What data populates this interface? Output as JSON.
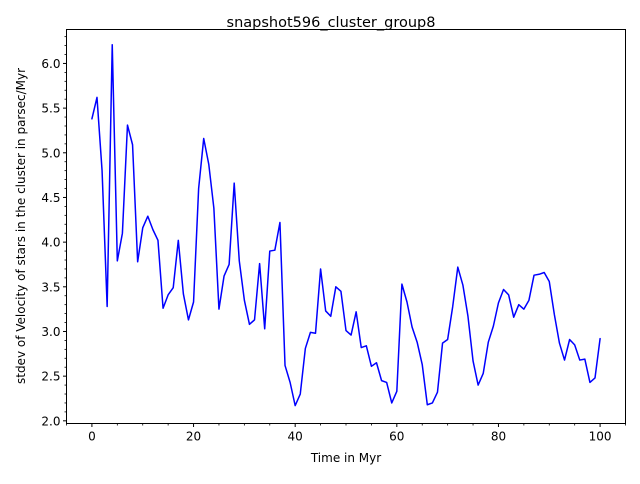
{
  "chart_data": {
    "type": "line",
    "title": "snapshot596_cluster_group8",
    "xlabel": "Time in Myr",
    "ylabel": "stdev of Velocity of stars in the cluster in parsec/Myr",
    "xlim": [
      -5,
      105
    ],
    "ylim": [
      1.97,
      6.38
    ],
    "xticks": [
      0,
      20,
      40,
      60,
      80,
      100
    ],
    "xtick_labels": [
      "0",
      "20",
      "40",
      "60",
      "80",
      "100"
    ],
    "yticks": [
      2.0,
      2.5,
      3.0,
      3.5,
      4.0,
      4.5,
      5.0,
      5.5,
      6.0
    ],
    "ytick_labels": [
      "2.0",
      "2.5",
      "3.0",
      "3.5",
      "4.0",
      "4.5",
      "5.0",
      "5.5",
      "6.0"
    ],
    "grid": false,
    "series": [
      {
        "color": "#0000ff",
        "x": [
          0,
          1,
          2,
          3,
          4,
          5,
          6,
          7,
          8,
          9,
          10,
          11,
          12,
          13,
          14,
          15,
          16,
          17,
          18,
          19,
          20,
          21,
          22,
          23,
          24,
          25,
          26,
          27,
          28,
          29,
          30,
          31,
          32,
          33,
          34,
          35,
          36,
          37,
          38,
          39,
          40,
          41,
          42,
          43,
          44,
          45,
          46,
          47,
          48,
          49,
          50,
          51,
          52,
          53,
          54,
          55,
          56,
          57,
          58,
          59,
          60,
          61,
          62,
          63,
          64,
          65,
          66,
          67,
          68,
          69,
          70,
          71,
          72,
          73,
          74,
          75,
          76,
          77,
          78,
          79,
          80,
          81,
          82,
          83,
          84,
          85,
          86,
          87,
          88,
          89,
          90,
          91,
          92,
          93,
          94,
          95,
          96,
          97,
          98,
          99,
          100
        ],
        "y": [
          5.38,
          5.62,
          4.8,
          3.28,
          6.21,
          3.79,
          4.1,
          5.31,
          5.09,
          3.78,
          4.16,
          4.29,
          4.14,
          4.02,
          3.26,
          3.41,
          3.49,
          4.02,
          3.42,
          3.13,
          3.33,
          4.6,
          5.16,
          4.87,
          4.38,
          3.25,
          3.62,
          3.75,
          4.66,
          3.79,
          3.35,
          3.08,
          3.13,
          3.76,
          3.03,
          3.9,
          3.91,
          4.22,
          2.62,
          2.43,
          2.17,
          2.3,
          2.81,
          2.99,
          2.98,
          3.7,
          3.23,
          3.17,
          3.5,
          3.45,
          3.01,
          2.96,
          3.22,
          2.82,
          2.84,
          2.61,
          2.65,
          2.45,
          2.43,
          2.2,
          2.33,
          3.53,
          3.33,
          3.05,
          2.88,
          2.63,
          2.18,
          2.2,
          2.32,
          2.87,
          2.91,
          3.28,
          3.72,
          3.52,
          3.17,
          2.67,
          2.4,
          2.53,
          2.88,
          3.06,
          3.32,
          3.47,
          3.41,
          3.16,
          3.3,
          3.25,
          3.35,
          3.63,
          3.64,
          3.66,
          3.56,
          3.19,
          2.87,
          2.68,
          2.91,
          2.85,
          2.68,
          2.69,
          2.43,
          2.48,
          2.92
        ]
      }
    ]
  }
}
